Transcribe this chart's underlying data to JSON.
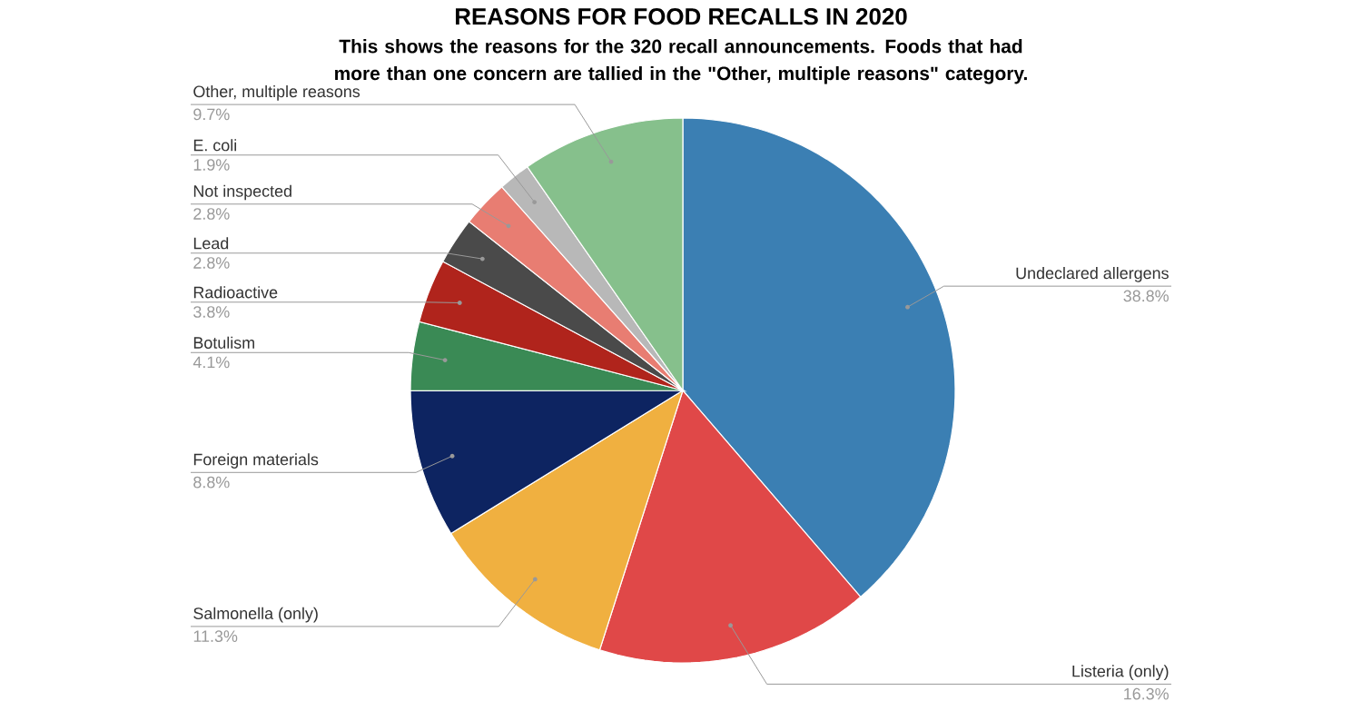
{
  "chart_data": {
    "type": "pie",
    "title": "REASONS FOR FOOD RECALLS IN 2020",
    "subtitle": "This shows the reasons for the 320 recall announcements. Foods that had more than one concern are tallied in the \"Other, multiple reasons\" category.",
    "categories": [
      "Undeclared allergens",
      "Listeria (only)",
      "Salmonella (only)",
      "Foreign materials",
      "Botulism",
      "Radioactive",
      "Lead",
      "Not inspected",
      "E. coli",
      "Other, multiple reasons"
    ],
    "values": [
      38.8,
      16.3,
      11.3,
      8.8,
      4.1,
      3.8,
      2.8,
      2.8,
      1.9,
      9.7
    ],
    "value_labels": [
      "38.8%",
      "16.3%",
      "11.3%",
      "8.8%",
      "4.1%",
      "3.8%",
      "2.8%",
      "2.8%",
      "1.9%",
      "9.7%"
    ],
    "colors": [
      "#3b7fb3",
      "#e04848",
      "#f0b040",
      "#0d2461",
      "#3a8a55",
      "#b0241c",
      "#4a4a4a",
      "#e87d72",
      "#b8b8b8",
      "#86c08c"
    ]
  }
}
